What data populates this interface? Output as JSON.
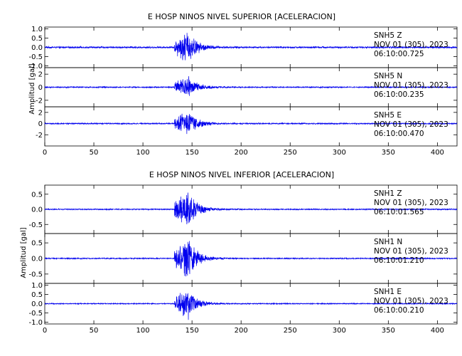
{
  "chart_data": [
    {
      "type": "line",
      "title": "E HOSP NINOS NIVEL SUPERIOR [ACELERACION]",
      "ylabel": "Amplitud [gal]",
      "xlim": [
        0,
        420
      ],
      "x_ticks": [
        0,
        50,
        100,
        150,
        200,
        250,
        300,
        350,
        400
      ],
      "series": [
        {
          "station": "SNH5",
          "component": "Z",
          "date": "NOV 01 (305), 2023",
          "time": "06:10:00.725",
          "ylim": [
            -1.1,
            1.1
          ],
          "y_ticks": [
            "1.0",
            "0.5",
            "0.0",
            "-0.5",
            "-1.0"
          ],
          "y_tick_values": [
            1.0,
            0.5,
            0.0,
            -0.5,
            -1.0
          ],
          "onset_s": 132,
          "peak_s": 146,
          "peak_amplitude": 0.95,
          "noise_amplitude": 0.05,
          "color": "#0000ee"
        },
        {
          "station": "SNH5",
          "component": "N",
          "date": "NOV 01 (305), 2023",
          "time": "06:10:00.235",
          "ylim": [
            -3,
            3
          ],
          "y_ticks": [
            "2",
            "0",
            "-2"
          ],
          "y_tick_values": [
            2,
            0,
            -2
          ],
          "onset_s": 132,
          "peak_s": 146,
          "peak_amplitude": 1.8,
          "noise_amplitude": 0.1,
          "color": "#0000ee"
        },
        {
          "station": "SNH5",
          "component": "E",
          "date": "NOV 01 (305), 2023",
          "time": "06:10:00.470",
          "ylim": [
            -4,
            3
          ],
          "y_ticks": [
            "2",
            "0",
            "-2"
          ],
          "y_tick_values": [
            2,
            0,
            -2
          ],
          "onset_s": 132,
          "peak_s": 146,
          "peak_amplitude": 2.6,
          "noise_amplitude": 0.12,
          "color": "#0000ee"
        }
      ]
    },
    {
      "type": "line",
      "title": "E HOSP NINOS NIVEL INFERIOR [ACELERACION]",
      "ylabel": "Amplitud [gal]",
      "xlim": [
        0,
        420
      ],
      "x_ticks": [
        0,
        50,
        100,
        150,
        200,
        250,
        300,
        350,
        400
      ],
      "series": [
        {
          "station": "SNH1",
          "component": "Z",
          "date": "NOV 01 (305), 2023",
          "time": "06:10:01.565",
          "ylim": [
            -0.8,
            0.8
          ],
          "y_ticks": [
            "0.5",
            "0.0",
            "-0.5"
          ],
          "y_tick_values": [
            0.5,
            0.0,
            -0.5
          ],
          "onset_s": 132,
          "peak_s": 146,
          "peak_amplitude": 0.7,
          "noise_amplitude": 0.02,
          "color": "#0000ee"
        },
        {
          "station": "SNH1",
          "component": "N",
          "date": "NOV 01 (305), 2023",
          "time": "06:10:01.210",
          "ylim": [
            -0.8,
            0.8
          ],
          "y_ticks": [
            "0.5",
            "0.0",
            "-0.5"
          ],
          "y_tick_values": [
            0.5,
            0.0,
            -0.5
          ],
          "onset_s": 132,
          "peak_s": 146,
          "peak_amplitude": 0.75,
          "noise_amplitude": 0.02,
          "color": "#0000ee"
        },
        {
          "station": "SNH1",
          "component": "E",
          "date": "NOV 01 (305), 2023",
          "time": "06:10:00.210",
          "ylim": [
            -1.1,
            1.1
          ],
          "y_ticks": [
            "1.0",
            "0.5",
            "0.0",
            "-0.5",
            "-1.0"
          ],
          "y_tick_values": [
            1.0,
            0.5,
            0.0,
            -0.5,
            -1.0
          ],
          "onset_s": 132,
          "peak_s": 146,
          "peak_amplitude": 0.9,
          "noise_amplitude": 0.03,
          "color": "#0000ee"
        }
      ]
    }
  ]
}
